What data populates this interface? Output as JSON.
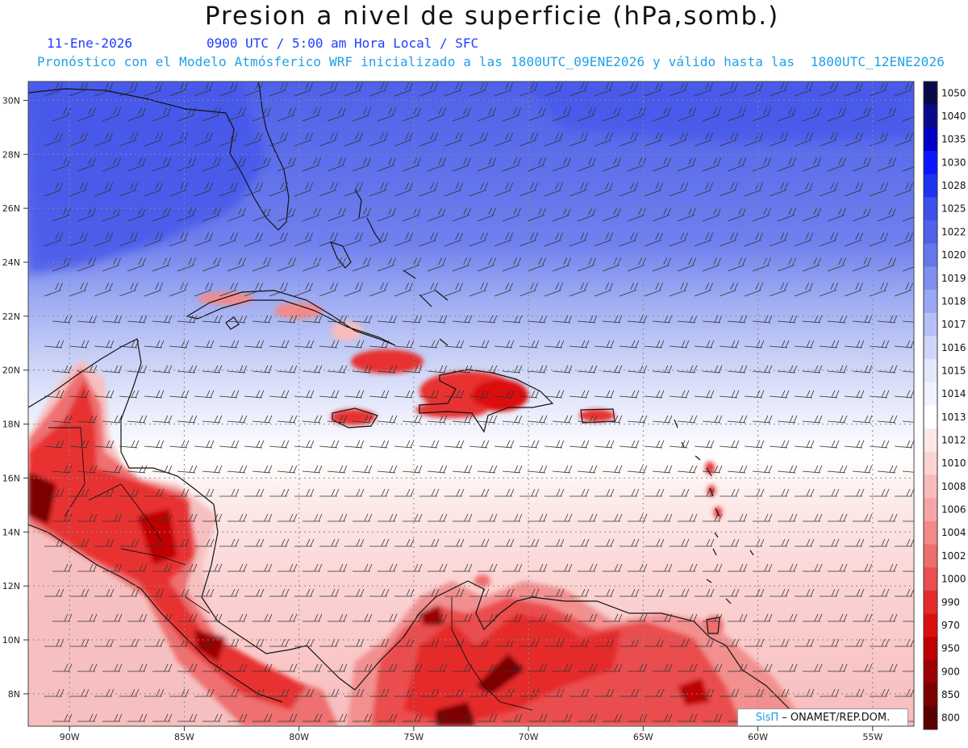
{
  "header": {
    "title": "Presion a nivel de superficie (hPa,somb.)",
    "date": "11-Ene-2026",
    "time": "0900 UTC / 5:00 am Hora Local / SFC",
    "model_info": "Pronóstico con el Modelo Atmósferico WRF inicializado a las 1800UTC_09ENE2026 y válido hasta las  1800UTC_12ENE2026"
  },
  "axes": {
    "lon_labels": [
      "90W",
      "85W",
      "80W",
      "75W",
      "70W",
      "65W",
      "60W",
      "55W"
    ],
    "lon_values": [
      -90,
      -85,
      -80,
      -75,
      -70,
      -65,
      -60,
      -55
    ],
    "lat_labels": [
      "30N",
      "28N",
      "26N",
      "24N",
      "22N",
      "20N",
      "18N",
      "16N",
      "14N",
      "12N",
      "10N",
      "8N"
    ],
    "lat_values": [
      30,
      28,
      26,
      24,
      22,
      20,
      18,
      16,
      14,
      12,
      10,
      8
    ],
    "lon_range": [
      -91.8,
      -53.2
    ],
    "lat_range": [
      6.8,
      30.7
    ]
  },
  "colorbar": {
    "levels": [
      "1050",
      "1040",
      "1035",
      "1030",
      "1028",
      "1025",
      "1022",
      "1020",
      "1019",
      "1018",
      "1017",
      "1016",
      "1015",
      "1014",
      "1013",
      "1012",
      "1010",
      "1008",
      "1006",
      "1004",
      "1002",
      "1000",
      "990",
      "970",
      "950",
      "900",
      "850",
      "800"
    ],
    "colors": [
      "#0a0a4a",
      "#0a0a8c",
      "#0000c8",
      "#0a14ff",
      "#1e32f0",
      "#3c50ec",
      "#4e62ea",
      "#6677ec",
      "#8090f0",
      "#9aa8f2",
      "#b6c0f6",
      "#cfd6f8",
      "#e4e8fb",
      "#f0f2fd",
      "#ffffff",
      "#fde8e8",
      "#fbd3d3",
      "#f8bcbc",
      "#f5a5a5",
      "#f28a8a",
      "#ee6e6e",
      "#ea4e4e",
      "#e52a2a",
      "#dc0f0f",
      "#c00000",
      "#9c0000",
      "#7c0000",
      "#5a0000"
    ]
  },
  "logo": {
    "brand": "SisΠ",
    "org": "– ONAMET/REP.DOM."
  }
}
